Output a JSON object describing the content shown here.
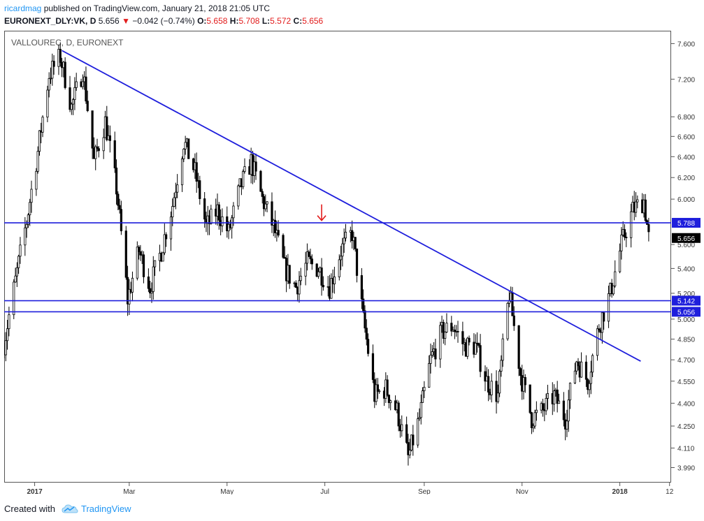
{
  "header": {
    "author": "ricardmag",
    "published": "published on TradingView.com, January 21, 2018 21:05 UTC",
    "symbol": "EURONEXT_DLY:VK, D",
    "last": "5.656",
    "change": "−0.042 (−0.74%)",
    "o_label": "O:",
    "o": "5.658",
    "h_label": "H:",
    "h": "5.708",
    "l_label": "L:",
    "l": "5.572",
    "c_label": "C:",
    "c": "5.656"
  },
  "footer": {
    "created_with": "Created with",
    "brand": "TradingView"
  },
  "colors": {
    "line": "#1e1edc",
    "arrow": "#e21c1c",
    "candle": "#000000",
    "axis": "#555555"
  },
  "chart_data": {
    "type": "candlestick",
    "title": "VALLOUREC, D, EURONEXT",
    "y_scale": "log",
    "ylim": [
      3.9,
      7.75
    ],
    "y_ticks": [
      "7.600",
      "7.200",
      "6.800",
      "6.600",
      "6.400",
      "6.200",
      "6.000",
      "5.600",
      "5.400",
      "5.200",
      "5.000",
      "4.850",
      "4.700",
      "4.550",
      "4.400",
      "4.250",
      "4.110",
      "3.990"
    ],
    "x_ticks": [
      "2017",
      "Mar",
      "May",
      "Jul",
      "Sep",
      "Nov",
      "2018",
      "12"
    ],
    "x_tick_bold": [
      true,
      false,
      false,
      false,
      false,
      false,
      true,
      false
    ],
    "x_range": [
      "2016-12-13",
      "2018-02-02"
    ],
    "x_tick_dates": [
      "2017-01-01",
      "2017-03-01",
      "2017-05-01",
      "2017-07-01",
      "2017-09-01",
      "2017-11-01",
      "2018-01-01",
      "2018-02-01"
    ],
    "price_labels": [
      {
        "value": "5.788",
        "style": "line"
      },
      {
        "value": "5.656",
        "style": "last"
      },
      {
        "value": "5.142",
        "style": "line"
      },
      {
        "value": "5.056",
        "style": "line"
      }
    ],
    "horizontal_lines": [
      5.788,
      5.142,
      5.056
    ],
    "trendline": {
      "start": [
        "2017-01-18",
        7.52
      ],
      "end": [
        "2018-01-14",
        4.69
      ]
    },
    "arrow_annotation": {
      "date": "2017-06-29",
      "price": 5.79,
      "direction": "down"
    },
    "series": [
      [
        "2016-12-13",
        4.82
      ],
      [
        "2016-12-20",
        5.3
      ],
      [
        "2016-12-27",
        5.8
      ],
      [
        "2017-01-03",
        6.45
      ],
      [
        "2017-01-10",
        7.25
      ],
      [
        "2017-01-17",
        7.45
      ],
      [
        "2017-01-24",
        6.9
      ],
      [
        "2017-01-31",
        7.3
      ],
      [
        "2017-02-07",
        6.35
      ],
      [
        "2017-02-14",
        6.75
      ],
      [
        "2017-02-21",
        6.1
      ],
      [
        "2017-02-28",
        5.15
      ],
      [
        "2017-03-07",
        5.55
      ],
      [
        "2017-03-14",
        5.25
      ],
      [
        "2017-03-21",
        5.55
      ],
      [
        "2017-03-28",
        5.95
      ],
      [
        "2017-04-04",
        6.55
      ],
      [
        "2017-04-11",
        6.25
      ],
      [
        "2017-04-18",
        5.75
      ],
      [
        "2017-04-25",
        5.9
      ],
      [
        "2017-05-02",
        5.7
      ],
      [
        "2017-05-09",
        6.1
      ],
      [
        "2017-05-16",
        6.35
      ],
      [
        "2017-05-23",
        6.0
      ],
      [
        "2017-05-30",
        5.75
      ],
      [
        "2017-06-06",
        5.4
      ],
      [
        "2017-06-13",
        5.25
      ],
      [
        "2017-06-20",
        5.45
      ],
      [
        "2017-06-27",
        5.4
      ],
      [
        "2017-07-04",
        5.25
      ],
      [
        "2017-07-11",
        5.55
      ],
      [
        "2017-07-18",
        5.7
      ],
      [
        "2017-07-25",
        5.0
      ],
      [
        "2017-08-01",
        4.45
      ],
      [
        "2017-08-08",
        4.5
      ],
      [
        "2017-08-15",
        4.35
      ],
      [
        "2017-08-22",
        4.05
      ],
      [
        "2017-08-29",
        4.3
      ],
      [
        "2017-09-05",
        4.7
      ],
      [
        "2017-09-12",
        4.9
      ],
      [
        "2017-09-19",
        4.95
      ],
      [
        "2017-09-26",
        4.8
      ],
      [
        "2017-10-03",
        4.8
      ],
      [
        "2017-10-10",
        4.55
      ],
      [
        "2017-10-17",
        4.45
      ],
      [
        "2017-10-24",
        5.2
      ],
      [
        "2017-10-31",
        4.6
      ],
      [
        "2017-11-07",
        4.3
      ],
      [
        "2017-11-14",
        4.35
      ],
      [
        "2017-11-21",
        4.45
      ],
      [
        "2017-11-28",
        4.3
      ],
      [
        "2017-12-05",
        4.7
      ],
      [
        "2017-12-12",
        4.55
      ],
      [
        "2017-12-19",
        4.95
      ],
      [
        "2017-12-26",
        5.2
      ],
      [
        "2018-01-02",
        5.6
      ],
      [
        "2018-01-09",
        5.9
      ],
      [
        "2018-01-16",
        5.99
      ],
      [
        "2018-01-19",
        5.656
      ]
    ]
  }
}
